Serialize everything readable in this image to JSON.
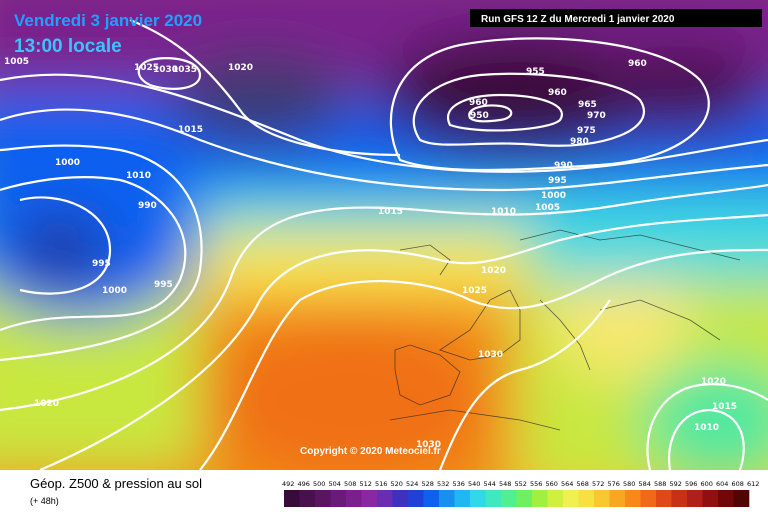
{
  "header": {
    "date": "Vendredi 3 janvier 2020",
    "time": "13:00 locale",
    "run": "Run GFS 12 Z du Mercredi 1 janvier 2020"
  },
  "map": {
    "copyright": "Copyright © 2020 Meteociel.fr",
    "isobar_labels": [
      "1005",
      "1025",
      "1030",
      "1035",
      "1020",
      "1015",
      "1000",
      "1010",
      "990",
      "995",
      "995",
      "1000",
      "1020",
      "1015",
      "1010",
      "1005",
      "1000",
      "995",
      "990",
      "1020",
      "1025",
      "1030",
      "1030",
      "955",
      "960",
      "960",
      "965",
      "970",
      "975",
      "980",
      "960",
      "950",
      "1020",
      "1015",
      "1010"
    ]
  },
  "footer": {
    "title": "Géop. Z500 & pression au sol",
    "subtitle": "(+ 48h)",
    "colorbar": {
      "ticks": [
        492,
        496,
        500,
        504,
        508,
        512,
        516,
        520,
        524,
        528,
        532,
        536,
        540,
        544,
        548,
        552,
        556,
        560,
        564,
        568,
        572,
        576,
        580,
        584,
        588,
        592,
        596,
        600,
        604,
        608,
        612
      ],
      "colors": [
        "#3a0a3a",
        "#4a0f4f",
        "#5a1462",
        "#6a1a78",
        "#7a208c",
        "#8a28a0",
        "#6a2cb0",
        "#4030c0",
        "#2040d8",
        "#1060f0",
        "#1890f0",
        "#20b8f0",
        "#30d8e8",
        "#40e8c0",
        "#50f090",
        "#70f060",
        "#a0f040",
        "#d0f040",
        "#f0f050",
        "#f8e040",
        "#f8c830",
        "#f8a820",
        "#f88818",
        "#f06818",
        "#e04818",
        "#c83018",
        "#b02018",
        "#901010",
        "#700808",
        "#500404"
      ]
    }
  }
}
